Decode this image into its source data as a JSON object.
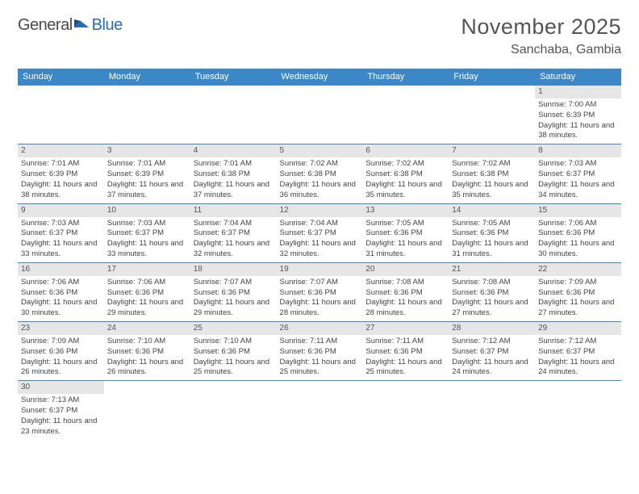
{
  "brand": {
    "part1": "General",
    "part2": "Blue"
  },
  "title": "November 2025",
  "location": "Sanchaba, Gambia",
  "colors": {
    "header_bg": "#3b87c8",
    "header_text": "#ffffff",
    "daynum_bg": "#e6e6e6",
    "text": "#555555",
    "rule": "#3b87c8",
    "brand_gray": "#4a4a4a",
    "brand_blue": "#2a6cb0"
  },
  "day_headers": [
    "Sunday",
    "Monday",
    "Tuesday",
    "Wednesday",
    "Thursday",
    "Friday",
    "Saturday"
  ],
  "weeks": [
    [
      {
        "n": "",
        "sr": "",
        "ss": "",
        "dl": ""
      },
      {
        "n": "",
        "sr": "",
        "ss": "",
        "dl": ""
      },
      {
        "n": "",
        "sr": "",
        "ss": "",
        "dl": ""
      },
      {
        "n": "",
        "sr": "",
        "ss": "",
        "dl": ""
      },
      {
        "n": "",
        "sr": "",
        "ss": "",
        "dl": ""
      },
      {
        "n": "",
        "sr": "",
        "ss": "",
        "dl": ""
      },
      {
        "n": "1",
        "sr": "Sunrise: 7:00 AM",
        "ss": "Sunset: 6:39 PM",
        "dl": "Daylight: 11 hours and 38 minutes."
      }
    ],
    [
      {
        "n": "2",
        "sr": "Sunrise: 7:01 AM",
        "ss": "Sunset: 6:39 PM",
        "dl": "Daylight: 11 hours and 38 minutes."
      },
      {
        "n": "3",
        "sr": "Sunrise: 7:01 AM",
        "ss": "Sunset: 6:39 PM",
        "dl": "Daylight: 11 hours and 37 minutes."
      },
      {
        "n": "4",
        "sr": "Sunrise: 7:01 AM",
        "ss": "Sunset: 6:38 PM",
        "dl": "Daylight: 11 hours and 37 minutes."
      },
      {
        "n": "5",
        "sr": "Sunrise: 7:02 AM",
        "ss": "Sunset: 6:38 PM",
        "dl": "Daylight: 11 hours and 36 minutes."
      },
      {
        "n": "6",
        "sr": "Sunrise: 7:02 AM",
        "ss": "Sunset: 6:38 PM",
        "dl": "Daylight: 11 hours and 35 minutes."
      },
      {
        "n": "7",
        "sr": "Sunrise: 7:02 AM",
        "ss": "Sunset: 6:38 PM",
        "dl": "Daylight: 11 hours and 35 minutes."
      },
      {
        "n": "8",
        "sr": "Sunrise: 7:03 AM",
        "ss": "Sunset: 6:37 PM",
        "dl": "Daylight: 11 hours and 34 minutes."
      }
    ],
    [
      {
        "n": "9",
        "sr": "Sunrise: 7:03 AM",
        "ss": "Sunset: 6:37 PM",
        "dl": "Daylight: 11 hours and 33 minutes."
      },
      {
        "n": "10",
        "sr": "Sunrise: 7:03 AM",
        "ss": "Sunset: 6:37 PM",
        "dl": "Daylight: 11 hours and 33 minutes."
      },
      {
        "n": "11",
        "sr": "Sunrise: 7:04 AM",
        "ss": "Sunset: 6:37 PM",
        "dl": "Daylight: 11 hours and 32 minutes."
      },
      {
        "n": "12",
        "sr": "Sunrise: 7:04 AM",
        "ss": "Sunset: 6:37 PM",
        "dl": "Daylight: 11 hours and 32 minutes."
      },
      {
        "n": "13",
        "sr": "Sunrise: 7:05 AM",
        "ss": "Sunset: 6:36 PM",
        "dl": "Daylight: 11 hours and 31 minutes."
      },
      {
        "n": "14",
        "sr": "Sunrise: 7:05 AM",
        "ss": "Sunset: 6:36 PM",
        "dl": "Daylight: 11 hours and 31 minutes."
      },
      {
        "n": "15",
        "sr": "Sunrise: 7:06 AM",
        "ss": "Sunset: 6:36 PM",
        "dl": "Daylight: 11 hours and 30 minutes."
      }
    ],
    [
      {
        "n": "16",
        "sr": "Sunrise: 7:06 AM",
        "ss": "Sunset: 6:36 PM",
        "dl": "Daylight: 11 hours and 30 minutes."
      },
      {
        "n": "17",
        "sr": "Sunrise: 7:06 AM",
        "ss": "Sunset: 6:36 PM",
        "dl": "Daylight: 11 hours and 29 minutes."
      },
      {
        "n": "18",
        "sr": "Sunrise: 7:07 AM",
        "ss": "Sunset: 6:36 PM",
        "dl": "Daylight: 11 hours and 29 minutes."
      },
      {
        "n": "19",
        "sr": "Sunrise: 7:07 AM",
        "ss": "Sunset: 6:36 PM",
        "dl": "Daylight: 11 hours and 28 minutes."
      },
      {
        "n": "20",
        "sr": "Sunrise: 7:08 AM",
        "ss": "Sunset: 6:36 PM",
        "dl": "Daylight: 11 hours and 28 minutes."
      },
      {
        "n": "21",
        "sr": "Sunrise: 7:08 AM",
        "ss": "Sunset: 6:36 PM",
        "dl": "Daylight: 11 hours and 27 minutes."
      },
      {
        "n": "22",
        "sr": "Sunrise: 7:09 AM",
        "ss": "Sunset: 6:36 PM",
        "dl": "Daylight: 11 hours and 27 minutes."
      }
    ],
    [
      {
        "n": "23",
        "sr": "Sunrise: 7:09 AM",
        "ss": "Sunset: 6:36 PM",
        "dl": "Daylight: 11 hours and 26 minutes."
      },
      {
        "n": "24",
        "sr": "Sunrise: 7:10 AM",
        "ss": "Sunset: 6:36 PM",
        "dl": "Daylight: 11 hours and 26 minutes."
      },
      {
        "n": "25",
        "sr": "Sunrise: 7:10 AM",
        "ss": "Sunset: 6:36 PM",
        "dl": "Daylight: 11 hours and 25 minutes."
      },
      {
        "n": "26",
        "sr": "Sunrise: 7:11 AM",
        "ss": "Sunset: 6:36 PM",
        "dl": "Daylight: 11 hours and 25 minutes."
      },
      {
        "n": "27",
        "sr": "Sunrise: 7:11 AM",
        "ss": "Sunset: 6:36 PM",
        "dl": "Daylight: 11 hours and 25 minutes."
      },
      {
        "n": "28",
        "sr": "Sunrise: 7:12 AM",
        "ss": "Sunset: 6:37 PM",
        "dl": "Daylight: 11 hours and 24 minutes."
      },
      {
        "n": "29",
        "sr": "Sunrise: 7:12 AM",
        "ss": "Sunset: 6:37 PM",
        "dl": "Daylight: 11 hours and 24 minutes."
      }
    ],
    [
      {
        "n": "30",
        "sr": "Sunrise: 7:13 AM",
        "ss": "Sunset: 6:37 PM",
        "dl": "Daylight: 11 hours and 23 minutes."
      },
      {
        "n": "",
        "sr": "",
        "ss": "",
        "dl": ""
      },
      {
        "n": "",
        "sr": "",
        "ss": "",
        "dl": ""
      },
      {
        "n": "",
        "sr": "",
        "ss": "",
        "dl": ""
      },
      {
        "n": "",
        "sr": "",
        "ss": "",
        "dl": ""
      },
      {
        "n": "",
        "sr": "",
        "ss": "",
        "dl": ""
      },
      {
        "n": "",
        "sr": "",
        "ss": "",
        "dl": ""
      }
    ]
  ]
}
